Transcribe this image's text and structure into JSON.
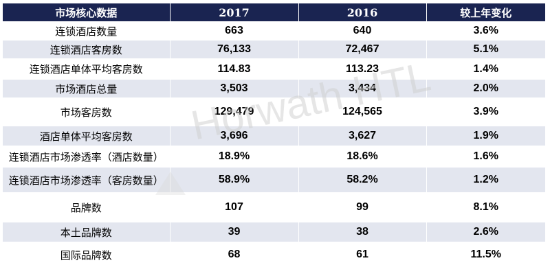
{
  "table": {
    "headers": [
      "市场核心数据",
      "2017",
      "2016",
      "较上年变化"
    ],
    "rows": [
      {
        "label": "连锁酒店数量",
        "y2017": "663",
        "y2016": "640",
        "change": "3.6%"
      },
      {
        "label": "连锁酒店客房数",
        "y2017": "76,133",
        "y2016": "72,467",
        "change": "5.1%"
      },
      {
        "label": "连锁酒店单体平均客房数",
        "y2017": "114.83",
        "y2016": "113.23",
        "change": "1.4%"
      },
      {
        "label": "市场酒店总量",
        "y2017": "3,503",
        "y2016": "3,434",
        "change": "2.0%"
      },
      {
        "label": "市场客房数",
        "y2017": "129,479",
        "y2016": "124,565",
        "change": "3.9%"
      },
      {
        "label": "酒店单体平均客房数",
        "y2017": "3,696",
        "y2016": "3,627",
        "change": "1.9%"
      },
      {
        "label": "连锁酒店市场渗透率（酒店数量）",
        "y2017": "18.9%",
        "y2016": "18.6%",
        "change": "1.6%"
      },
      {
        "label": "连锁酒店市场渗透率（客房数量）",
        "y2017": "58.9%",
        "y2016": "58.2%",
        "change": "1.2%"
      },
      {
        "label": "品牌数",
        "y2017": "107",
        "y2016": "99",
        "change": "8.1%"
      },
      {
        "label": "本土品牌数",
        "y2017": "39",
        "y2016": "38",
        "change": "2.6%"
      },
      {
        "label": "国际品牌数",
        "y2017": "68",
        "y2016": "61",
        "change": "11.5%"
      }
    ]
  },
  "watermark": {
    "text": "Horwath HTL"
  }
}
